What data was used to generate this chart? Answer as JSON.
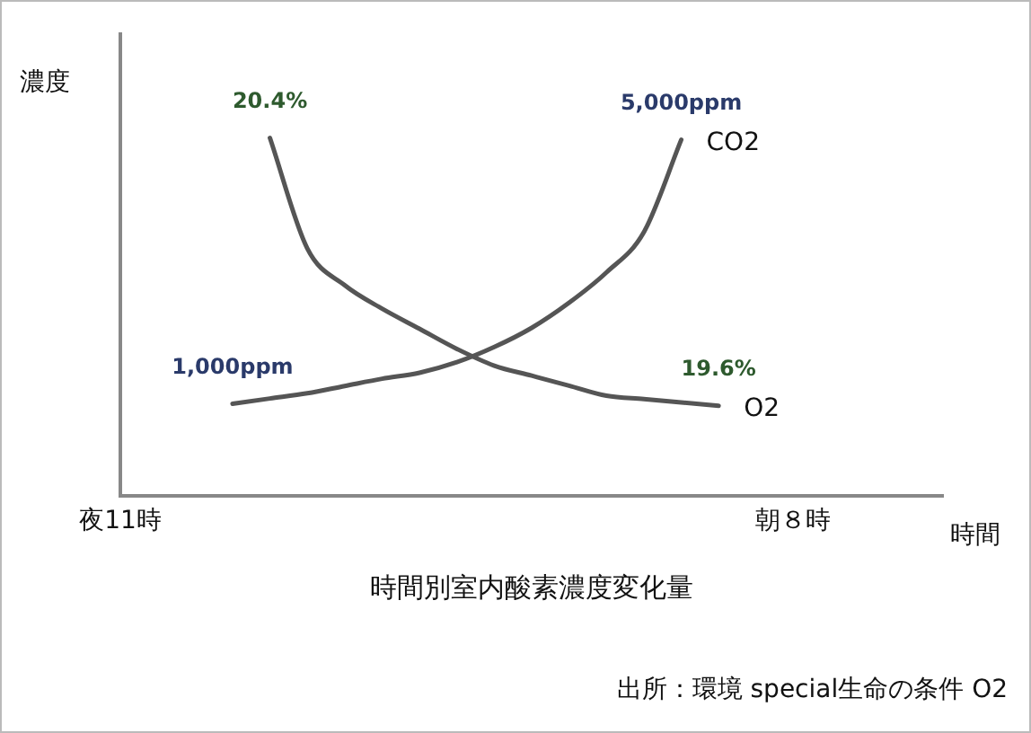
{
  "chart_data": {
    "type": "line",
    "title": "時間別室内酸素濃度変化量",
    "xlabel": "時間",
    "ylabel": "濃度",
    "categories": [
      "夜11時",
      null,
      null,
      null,
      null,
      null,
      null,
      null,
      null,
      null,
      null,
      null,
      null,
      null,
      null,
      null,
      null,
      null,
      "朝８時",
      null,
      null,
      null,
      null
    ],
    "ylim": [
      -400,
      6600
    ],
    "y2lim": [
      19.33,
      20.71
    ],
    "tick_labels": "x",
    "series": [
      {
        "name": "CO2",
        "color": "#555555",
        "values": [
          null,
          null,
          null,
          1000,
          1080,
          1160,
          1270,
          1380,
          1470,
          1630,
          1860,
          2150,
          2530,
          2990,
          3600,
          5000,
          null,
          null,
          null,
          null,
          null,
          null,
          null
        ],
        "value_labels": [
          null,
          null,
          null,
          "1,000ppm",
          null,
          null,
          null,
          null,
          null,
          null,
          null,
          null,
          null,
          null,
          null,
          "5,000ppm",
          null,
          null,
          null,
          null,
          null,
          null,
          null
        ]
      },
      {
        "name": "O2",
        "color": "#555555",
        "axis": "y2",
        "values": [
          null,
          null,
          null,
          null,
          20.4,
          20.07,
          19.96,
          19.89,
          19.83,
          19.77,
          19.72,
          19.69,
          19.66,
          19.63,
          19.62,
          19.61,
          19.6,
          null,
          null,
          null,
          null,
          null,
          null
        ],
        "value_labels": [
          null,
          null,
          null,
          null,
          "20.4%",
          null,
          null,
          null,
          null,
          null,
          null,
          null,
          null,
          null,
          null,
          null,
          "19.6%",
          null,
          null,
          null,
          null,
          null,
          null
        ]
      }
    ],
    "annotations": [
      "出所：環境 special生命の条件 O2"
    ],
    "grid": false,
    "legend": false,
    "marker": "none",
    "line_style": "solid"
  }
}
